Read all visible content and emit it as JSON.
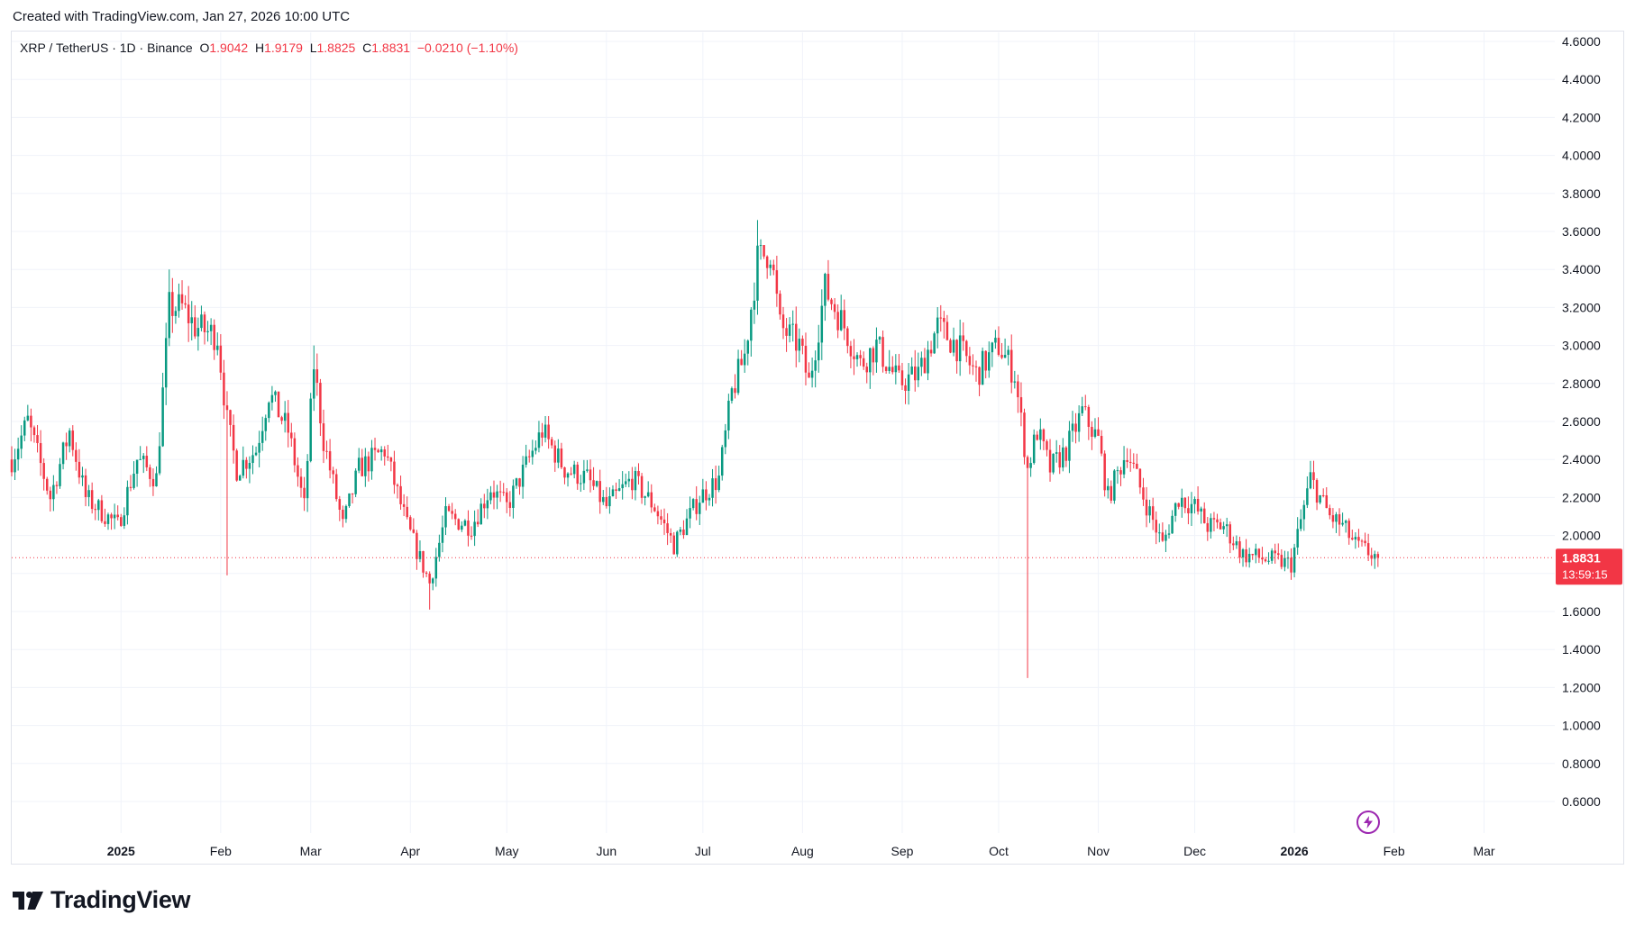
{
  "header": {
    "created_text": "Created with TradingView.com, Jan 27, 2026 10:00 UTC"
  },
  "legend": {
    "symbol": "XRP / TetherUS · 1D · Binance",
    "o_label": "O",
    "o_value": "1.9042",
    "h_label": "H",
    "h_value": "1.9179",
    "l_label": "L",
    "l_value": "1.8825",
    "c_label": "C",
    "c_value": "1.8831",
    "change": "−0.0210 (−1.10%)"
  },
  "price_tag": {
    "price": "1.8831",
    "countdown": "13:59:15"
  },
  "footer": {
    "brand": "TradingView"
  },
  "colors": {
    "up": "#089981",
    "down": "#f23645",
    "grid": "#f0f3fa",
    "text": "#131722"
  },
  "icons": {
    "flash": "lightning-icon",
    "logo": "tradingview-logo-icon"
  },
  "chart_data": {
    "type": "candlestick",
    "y_axis_ticks": [
      "0.6000",
      "0.8000",
      "1.0000",
      "1.2000",
      "1.4000",
      "1.6000",
      "1.8000",
      "2.0000",
      "2.2000",
      "2.4000",
      "2.6000",
      "2.8000",
      "3.0000",
      "3.2000",
      "3.4000",
      "3.6000",
      "3.8000",
      "4.0000",
      "4.2000",
      "4.4000",
      "4.6000"
    ],
    "x_axis_ticks": [
      {
        "label": "2025",
        "date": "2025-01-01",
        "bold": true
      },
      {
        "label": "Feb",
        "date": "2025-02-01",
        "bold": false
      },
      {
        "label": "Mar",
        "date": "2025-03-01",
        "bold": false
      },
      {
        "label": "Apr",
        "date": "2025-04-01",
        "bold": false
      },
      {
        "label": "May",
        "date": "2025-05-01",
        "bold": false
      },
      {
        "label": "Jun",
        "date": "2025-06-01",
        "bold": false
      },
      {
        "label": "Jul",
        "date": "2025-07-01",
        "bold": false
      },
      {
        "label": "Aug",
        "date": "2025-08-01",
        "bold": false
      },
      {
        "label": "Sep",
        "date": "2025-09-01",
        "bold": false
      },
      {
        "label": "Oct",
        "date": "2025-10-01",
        "bold": false
      },
      {
        "label": "Nov",
        "date": "2025-11-01",
        "bold": false
      },
      {
        "label": "Dec",
        "date": "2025-12-01",
        "bold": false
      },
      {
        "label": "2026",
        "date": "2026-01-01",
        "bold": true
      },
      {
        "label": "Feb",
        "date": "2026-02-01",
        "bold": false
      },
      {
        "label": "Mar",
        "date": "2026-03-01",
        "bold": false
      }
    ],
    "ylim": [
      0.5,
      4.6
    ],
    "xlim": [
      "2024-11-28",
      "2026-03-23"
    ],
    "last_close": 1.8831,
    "series_start": "2024-11-28",
    "series_end": "2026-01-27",
    "anchors": [
      [
        "2024-11-28",
        2.4
      ],
      [
        "2024-12-03",
        2.6
      ],
      [
        "2024-12-10",
        2.2
      ],
      [
        "2024-12-16",
        2.55
      ],
      [
        "2024-12-21",
        2.2
      ],
      [
        "2024-12-31",
        2.05
      ],
      [
        "2025-01-06",
        2.4
      ],
      [
        "2025-01-12",
        2.3
      ],
      [
        "2025-01-16",
        3.2
      ],
      [
        "2025-01-20",
        3.2
      ],
      [
        "2025-01-24",
        3.1
      ],
      [
        "2025-01-31",
        3.05
      ],
      [
        "2025-02-03",
        2.6
      ],
      [
        "2025-02-06",
        2.35
      ],
      [
        "2025-02-12",
        2.45
      ],
      [
        "2025-02-16",
        2.75
      ],
      [
        "2025-02-22",
        2.55
      ],
      [
        "2025-02-27",
        2.15
      ],
      [
        "2025-03-02",
        2.9
      ],
      [
        "2025-03-05",
        2.5
      ],
      [
        "2025-03-11",
        2.05
      ],
      [
        "2025-03-16",
        2.35
      ],
      [
        "2025-03-24",
        2.45
      ],
      [
        "2025-03-31",
        2.05
      ],
      [
        "2025-04-07",
        1.75
      ],
      [
        "2025-04-12",
        2.1
      ],
      [
        "2025-04-20",
        2.05
      ],
      [
        "2025-04-26",
        2.25
      ],
      [
        "2025-05-01",
        2.15
      ],
      [
        "2025-05-12",
        2.55
      ],
      [
        "2025-05-19",
        2.35
      ],
      [
        "2025-05-26",
        2.3
      ],
      [
        "2025-06-01",
        2.15
      ],
      [
        "2025-06-09",
        2.3
      ],
      [
        "2025-06-16",
        2.15
      ],
      [
        "2025-06-22",
        1.95
      ],
      [
        "2025-06-30",
        2.2
      ],
      [
        "2025-07-06",
        2.3
      ],
      [
        "2025-07-10",
        2.75
      ],
      [
        "2025-07-14",
        2.95
      ],
      [
        "2025-07-18",
        3.45
      ],
      [
        "2025-07-22",
        3.5
      ],
      [
        "2025-07-25",
        3.1
      ],
      [
        "2025-07-31",
        3.0
      ],
      [
        "2025-08-03",
        2.8
      ],
      [
        "2025-08-08",
        3.3
      ],
      [
        "2025-08-14",
        3.1
      ],
      [
        "2025-08-19",
        2.9
      ],
      [
        "2025-08-24",
        3.0
      ],
      [
        "2025-08-31",
        2.8
      ],
      [
        "2025-09-06",
        2.85
      ],
      [
        "2025-09-12",
        3.1
      ],
      [
        "2025-09-18",
        3.0
      ],
      [
        "2025-09-24",
        2.85
      ],
      [
        "2025-10-01",
        3.0
      ],
      [
        "2025-10-06",
        2.85
      ],
      [
        "2025-10-10",
        2.35
      ],
      [
        "2025-10-13",
        2.55
      ],
      [
        "2025-10-17",
        2.35
      ],
      [
        "2025-10-22",
        2.45
      ],
      [
        "2025-10-27",
        2.65
      ],
      [
        "2025-11-01",
        2.5
      ],
      [
        "2025-11-04",
        2.2
      ],
      [
        "2025-11-10",
        2.45
      ],
      [
        "2025-11-14",
        2.25
      ],
      [
        "2025-11-21",
        1.95
      ],
      [
        "2025-11-26",
        2.2
      ],
      [
        "2025-12-01",
        2.15
      ],
      [
        "2025-12-05",
        2.05
      ],
      [
        "2025-12-10",
        2.05
      ],
      [
        "2025-12-16",
        1.9
      ],
      [
        "2025-12-22",
        1.88
      ],
      [
        "2025-12-31",
        1.85
      ],
      [
        "2026-01-06",
        2.3
      ],
      [
        "2026-01-12",
        2.1
      ],
      [
        "2026-01-16",
        2.05
      ],
      [
        "2026-01-20",
        1.95
      ],
      [
        "2026-01-27",
        1.8831
      ]
    ],
    "wicks": [
      [
        "2025-02-03",
        1.79
      ],
      [
        "2025-04-07",
        1.61
      ],
      [
        "2025-10-10",
        1.25
      ],
      [
        "2025-07-18",
        3.66
      ],
      [
        "2025-01-16",
        3.4
      ],
      [
        "2025-03-02",
        3.0
      ],
      [
        "2025-12-31",
        1.82
      ]
    ]
  }
}
